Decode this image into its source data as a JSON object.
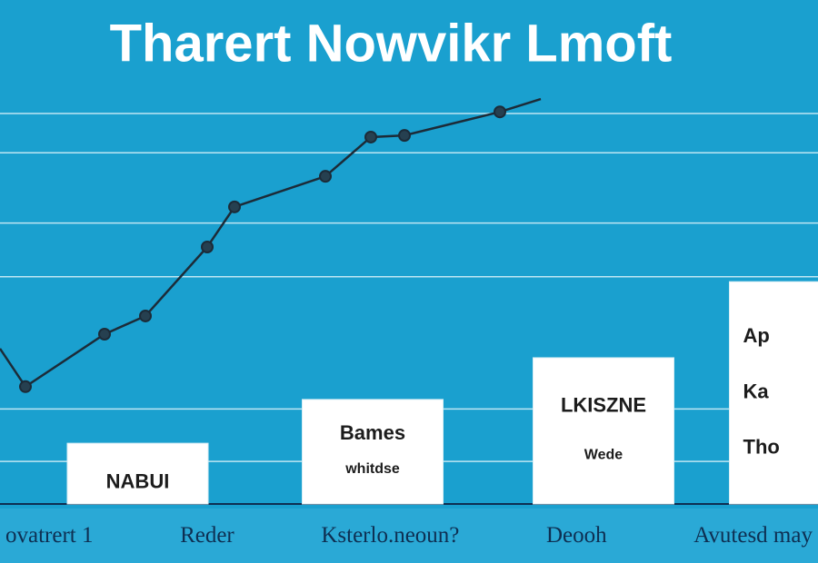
{
  "chart_data": {
    "type": "combo",
    "title": "Tharert  Nowvikr  Lmoft",
    "xlim": [
      0,
      900
    ],
    "ylim": [
      0,
      100
    ],
    "yticks": [
      10.3,
      23,
      55,
      68,
      85,
      94.5
    ],
    "grid": true,
    "line": {
      "color": "#1c2b38",
      "x": [
        0,
        28,
        115,
        160,
        228,
        258,
        358,
        408,
        445,
        550,
        595
      ],
      "values": [
        37.6,
        28.4,
        41.1,
        45.5,
        62.2,
        71.9,
        79.3,
        88.8,
        89.2,
        94.9,
        98.0
      ]
    },
    "bars": {
      "color": "#ffffff",
      "x": [
        151.5,
        410,
        664,
        880
      ],
      "values": [
        14.7,
        25.3,
        35.4,
        53.8
      ],
      "labels": [
        [
          "NABUI"
        ],
        [
          "Bames",
          "whitdse"
        ],
        [
          "LKISZNE",
          "Wede"
        ],
        [
          "Ap",
          "Ka",
          "Tho"
        ]
      ]
    },
    "categories": [
      "ovatrert 1",
      "Reder",
      "Ksterlo.neoun?",
      "Deooh",
      "Avutesd may"
    ]
  }
}
